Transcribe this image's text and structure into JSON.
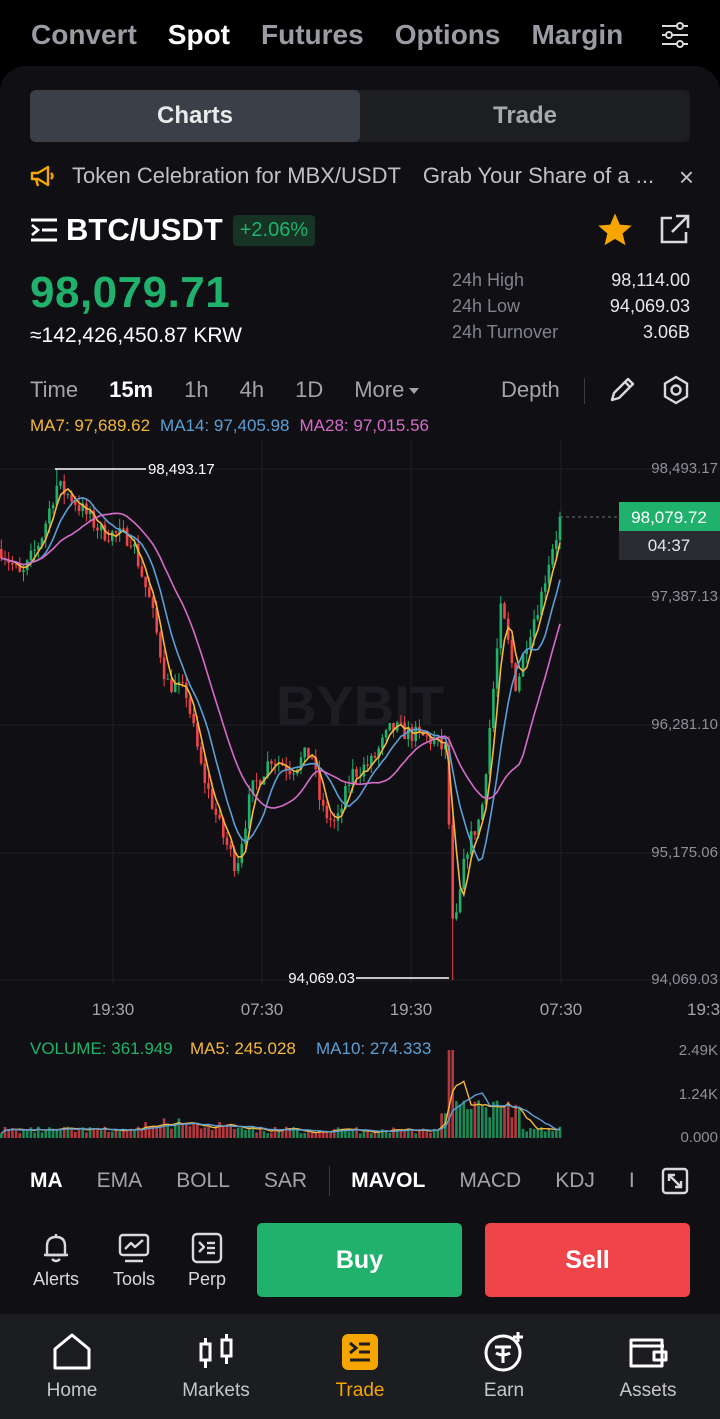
{
  "top_tabs": [
    "Convert",
    "Spot",
    "Futures",
    "Options",
    "Margin"
  ],
  "top_active": "Spot",
  "segment": [
    "Charts",
    "Trade"
  ],
  "notice": {
    "text1": "Token Celebration for  MBX/USDT",
    "text2": "Grab Your Share of a ...",
    "close": "×"
  },
  "pair": {
    "symbol": "BTC/USDT",
    "change": "+2.06%"
  },
  "price": "98,079.71",
  "fiat": "≈142,426,450.87 KRW",
  "stats": [
    {
      "k": "24h High",
      "v": "98,114.00"
    },
    {
      "k": "24h Low",
      "v": "94,069.03"
    },
    {
      "k": "24h Turnover",
      "v": "3.06B"
    }
  ],
  "timeframes": [
    "Time",
    "15m",
    "1h",
    "4h",
    "1D",
    "More"
  ],
  "tf_active": "15m",
  "depth": "Depth",
  "ma_legend": {
    "ma7": "MA7: 97,689.62",
    "ma14": "MA14: 97,405.98",
    "ma28": "MA28: 97,015.56"
  },
  "chart_data": {
    "type": "candlestick",
    "watermark": "BYBIT",
    "y_ticks": [
      "98,493.17",
      "97,387.13",
      "96,281.10",
      "95,175.06",
      "94,069.03"
    ],
    "ylim": [
      94069.03,
      98493.17
    ],
    "x_ticks": [
      "19:30",
      "07:30",
      "19:30",
      "07:30",
      "19:3"
    ],
    "high_label": "98,493.17",
    "low_label": "94,069.03",
    "last_price": "98,079.72",
    "countdown": "04:37",
    "colors": {
      "up": "#20b26c",
      "down": "#ef454a",
      "ma7": "#f5b83d",
      "ma14": "#5c9fd6",
      "ma28": "#d66bc9"
    }
  },
  "volume": {
    "legend": {
      "volume": "VOLUME: 361.949",
      "ma5": "MA5: 245.028",
      "ma10": "MA10: 274.333"
    },
    "y_ticks": [
      "2.49K",
      "1.24K",
      "0.000"
    ]
  },
  "indicators": [
    "MA",
    "EMA",
    "BOLL",
    "SAR",
    "MAVOL",
    "MACD",
    "KDJ",
    "I"
  ],
  "actions": [
    "Alerts",
    "Tools",
    "Perp"
  ],
  "buy": "Buy",
  "sell": "Sell",
  "bottom_nav": [
    "Home",
    "Markets",
    "Trade",
    "Earn",
    "Assets"
  ],
  "bottom_active": "Trade"
}
